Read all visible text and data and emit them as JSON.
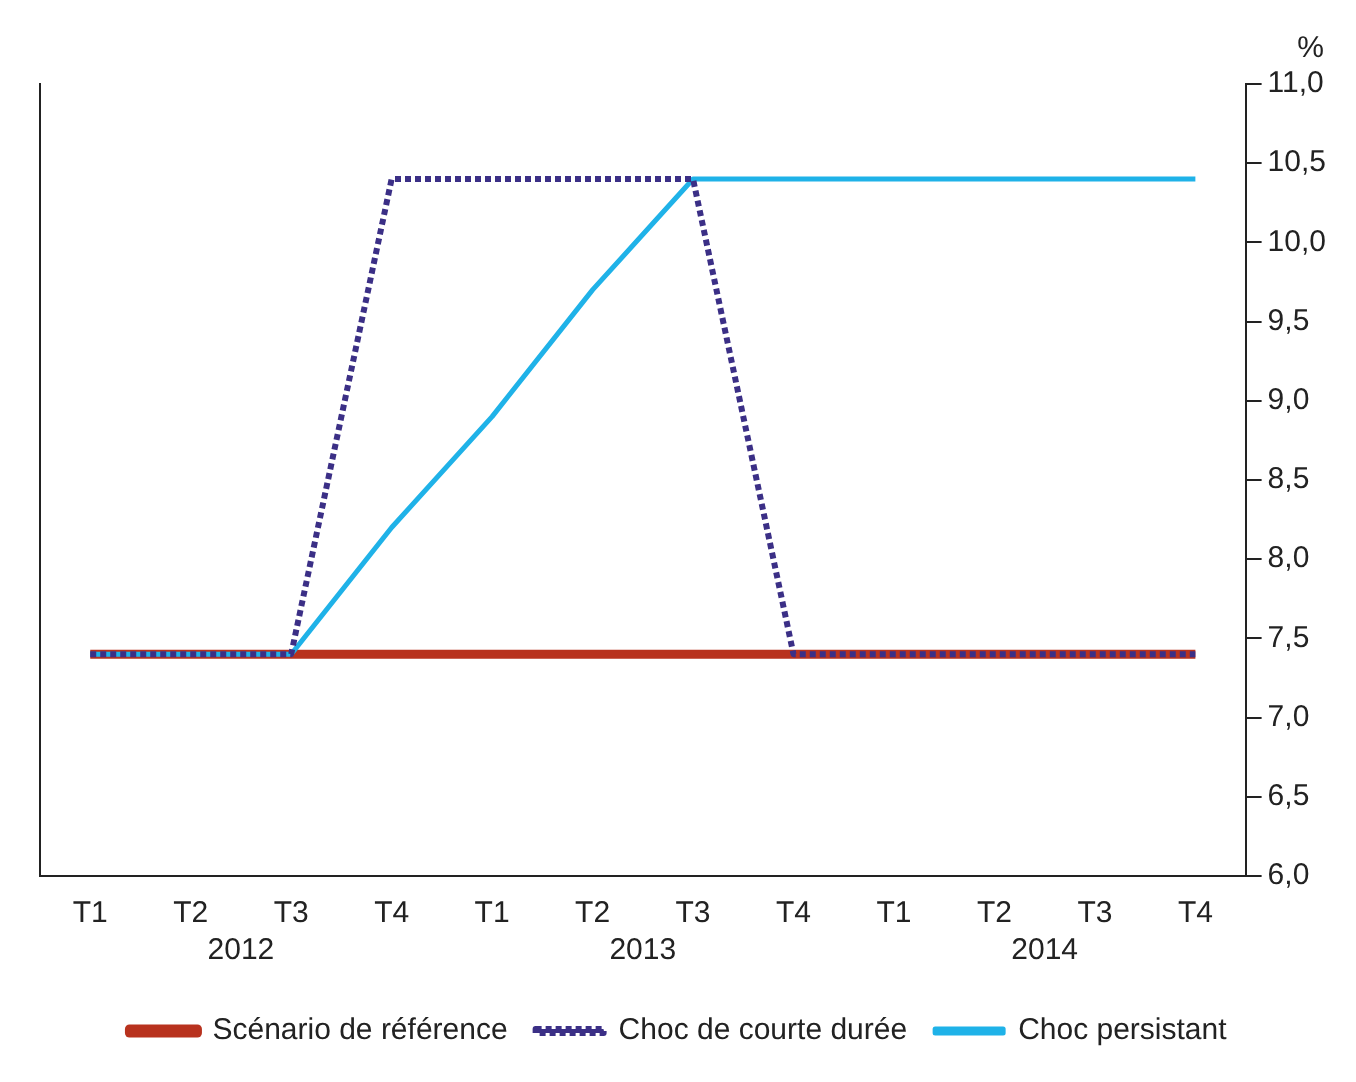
{
  "chart_data": {
    "type": "line",
    "ylabel": "%",
    "categories": [
      "T1",
      "T2",
      "T3",
      "T4",
      "T1",
      "T2",
      "T3",
      "T4",
      "T1",
      "T2",
      "T3",
      "T4"
    ],
    "annotations": [
      "2012",
      "2013",
      "2014"
    ],
    "series": [
      {
        "name": "Scénario de référence",
        "color": "#b8321e",
        "line_style": "solid",
        "values": [
          7.4,
          7.4,
          7.4,
          7.4,
          7.4,
          7.4,
          7.4,
          7.4,
          7.4,
          7.4,
          7.4,
          7.4
        ]
      },
      {
        "name": "Choc de courte durée",
        "color": "#3b2f86",
        "line_style": "dotted",
        "values": [
          7.4,
          7.4,
          7.4,
          10.4,
          10.4,
          10.4,
          10.4,
          7.4,
          7.4,
          7.4,
          7.4,
          7.4
        ]
      },
      {
        "name": "Choc persistant",
        "color": "#1fb2e8",
        "line_style": "solid",
        "values": [
          7.4,
          7.4,
          7.4,
          8.2,
          8.9,
          9.7,
          10.4,
          10.4,
          10.4,
          10.4,
          10.4,
          10.4
        ]
      }
    ],
    "ylim": [
      6,
      11
    ],
    "yticks": [
      {
        "value": 6,
        "label": "6,0"
      },
      {
        "value": 6.5,
        "label": "6,5"
      },
      {
        "value": 7,
        "label": "7,0"
      },
      {
        "value": 7.5,
        "label": "7,5"
      },
      {
        "value": 8,
        "label": "8,0"
      },
      {
        "value": 8.5,
        "label": "8,5"
      },
      {
        "value": 9,
        "label": "9,0"
      },
      {
        "value": 9.5,
        "label": "9,5"
      },
      {
        "value": 10,
        "label": "10,0"
      },
      {
        "value": 10.5,
        "label": "10,5"
      },
      {
        "value": 11,
        "label": "11,0"
      }
    ],
    "grid": false,
    "legend": "bottom",
    "marker": "none"
  }
}
